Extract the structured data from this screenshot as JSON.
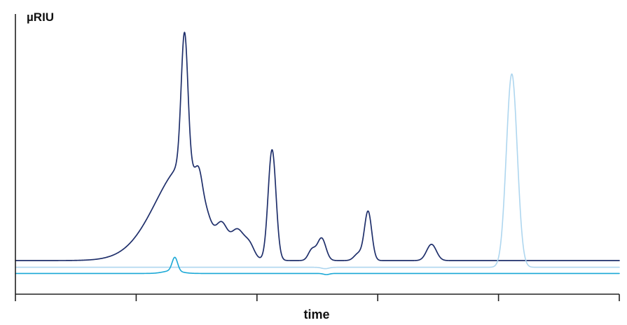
{
  "chart_data": {
    "type": "line",
    "title": "",
    "xlabel": "time",
    "ylabel": "µRIU",
    "xlim": [
      0,
      100
    ],
    "ylim": [
      0,
      100
    ],
    "x_ticks": [
      0,
      20,
      40,
      60,
      80,
      100
    ],
    "x_tick_labels": [],
    "grid": false,
    "legend": "none",
    "series": [
      {
        "color": "#1f2f6b",
        "stroke_width": 1.7,
        "baseline": 12.0,
        "peaks": [
          {
            "x": 28.2,
            "height": 26.0,
            "width": 2.4,
            "skew": 0.45
          },
          {
            "x": 28.2,
            "height": 8.5,
            "width": 4.6,
            "skew": 0.1
          },
          {
            "x": 28.0,
            "height": 47.0,
            "width": 0.55
          },
          {
            "x": 30.4,
            "height": 7.5,
            "width": 0.55
          },
          {
            "x": 31.6,
            "height": 3.0,
            "width": 0.8
          },
          {
            "x": 34.2,
            "height": 8.5,
            "width": 0.9
          },
          {
            "x": 36.8,
            "height": 9.5,
            "width": 1.1
          },
          {
            "x": 38.8,
            "height": 4.5,
            "width": 0.8
          },
          {
            "x": 42.5,
            "height": 39.5,
            "width": 0.65
          },
          {
            "x": 49.1,
            "height": 3.8,
            "width": 0.6
          },
          {
            "x": 50.7,
            "height": 8.0,
            "width": 0.7
          },
          {
            "x": 56.8,
            "height": 2.5,
            "width": 0.7
          },
          {
            "x": 58.4,
            "height": 17.5,
            "width": 0.6
          },
          {
            "x": 68.9,
            "height": 5.8,
            "width": 0.8
          }
        ]
      },
      {
        "color": "#aed6ef",
        "stroke_width": 1.6,
        "baseline": 9.6,
        "peaks": [
          {
            "x": 82.2,
            "height": 69.0,
            "width": 0.9
          },
          {
            "x": 51.3,
            "height": -0.5,
            "width": 0.6
          }
        ]
      },
      {
        "color": "#1aa8d6",
        "stroke_width": 1.6,
        "baseline": 7.4,
        "peaks": [
          {
            "x": 26.4,
            "height": 4.8,
            "width": 0.45
          },
          {
            "x": 26.0,
            "height": 1.0,
            "width": 1.4
          },
          {
            "x": 51.5,
            "height": -0.4,
            "width": 0.5
          }
        ]
      }
    ]
  }
}
